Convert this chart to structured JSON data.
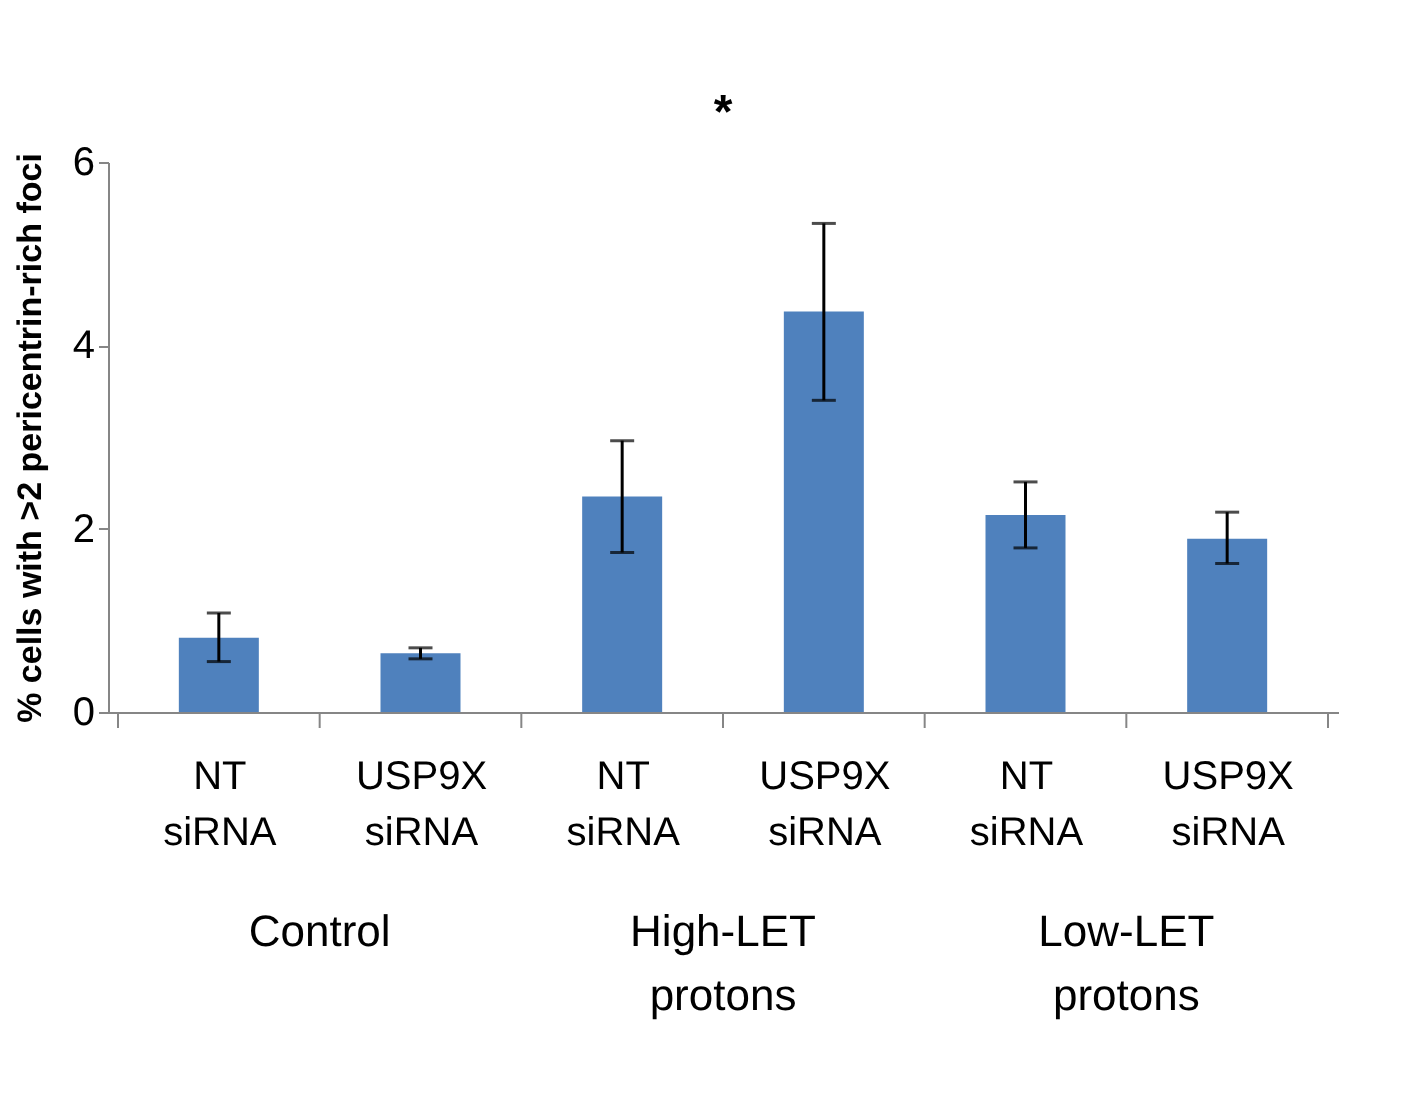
{
  "chart_data": {
    "type": "bar",
    "ylabel": "% cells with >2 pericentrin-rich foci",
    "categories": [
      "NT siRNA",
      "USP9X siRNA",
      "NT siRNA",
      "USP9X siRNA",
      "NT siRNA",
      "USP9X siRNA"
    ],
    "values": [
      0.81,
      0.64,
      2.35,
      4.37,
      2.15,
      1.89
    ],
    "errors": [
      [
        0.55,
        1.08
      ],
      [
        0.58,
        0.7
      ],
      [
        1.74,
        2.96
      ],
      [
        3.4,
        5.33
      ],
      [
        1.79,
        2.51
      ],
      [
        1.62,
        2.18
      ]
    ],
    "color": "#4f81bd",
    "ylim": [
      0,
      6
    ],
    "yticks": [
      0,
      2,
      4,
      6
    ],
    "grid": false,
    "annotations": [
      "*",
      "Control",
      "High-LET protons",
      "Low-LET protons"
    ]
  }
}
